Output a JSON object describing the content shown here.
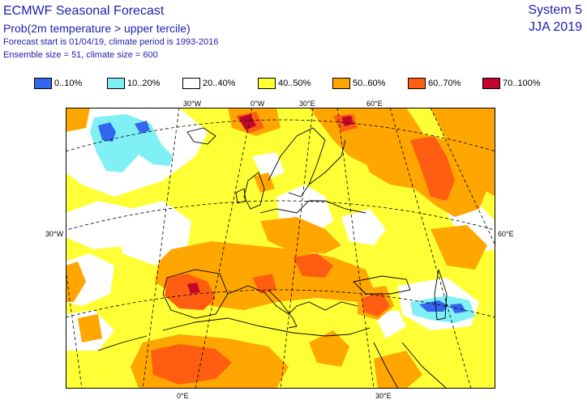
{
  "header": {
    "title": "ECMWF Seasonal Forecast",
    "subtitle": "Prob(2m temperature > upper tercile)",
    "forecast_info": "Forecast start is 01/04/19, climate period is 1993-2016",
    "ensemble_info": "Ensemble size = 51, climate size = 600",
    "system": "System 5",
    "season": "JJA 2019"
  },
  "legend": [
    {
      "label": "0..10%",
      "color": "#3366ee"
    },
    {
      "label": "10..20%",
      "color": "#7ff0f4"
    },
    {
      "label": "20..40%",
      "color": "#ffffff"
    },
    {
      "label": "40..50%",
      "color": "#ffff36"
    },
    {
      "label": "50..60%",
      "color": "#ffa600"
    },
    {
      "label": "60..70%",
      "color": "#ff5e12"
    },
    {
      "label": "70..100%",
      "color": "#c4062d"
    }
  ],
  "coords": {
    "top_30w": "30°W",
    "top_0e": "0°W",
    "top_30e": "30°E",
    "top_60e": "60°E",
    "left_30w": "30°W",
    "right_60e": "60°E",
    "bottom_0e": "0°E",
    "bottom_30e": "30°E"
  }
}
